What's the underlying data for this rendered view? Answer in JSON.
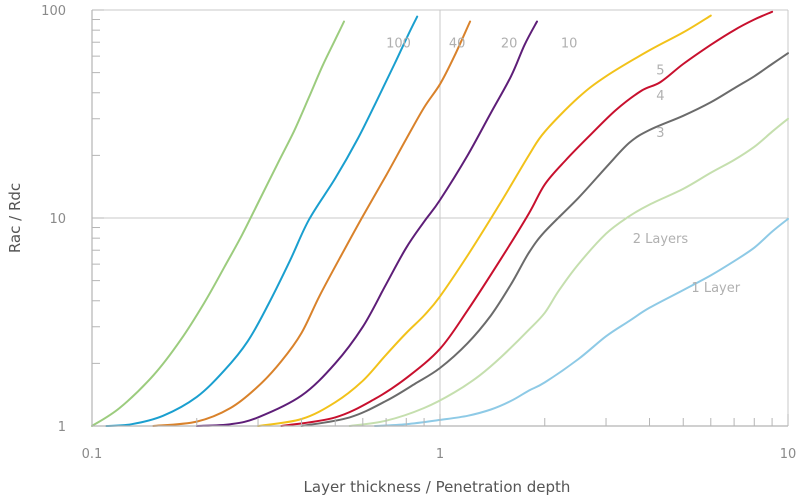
{
  "chart_data": {
    "type": "line",
    "xlabel": "Layer thickness / Penetration depth",
    "ylabel": "Rac / Rdc",
    "x_scale": "log",
    "y_scale": "log",
    "xlim": [
      0.1,
      10
    ],
    "ylim": [
      1,
      100
    ],
    "x_ticks": [
      {
        "value": 0.1,
        "label": "0.1"
      },
      {
        "value": 1,
        "label": "1"
      },
      {
        "value": 10,
        "label": "10"
      }
    ],
    "y_ticks": [
      {
        "value": 1,
        "label": "1"
      },
      {
        "value": 10,
        "label": "10"
      },
      {
        "value": 100,
        "label": "100"
      }
    ],
    "grid": "major gridlines at 1 and 10",
    "series": [
      {
        "name": "100",
        "color": "#9ccc7e",
        "points": [
          [
            0.1,
            1.0
          ],
          [
            0.12,
            1.22
          ],
          [
            0.15,
            1.75
          ],
          [
            0.18,
            2.6
          ],
          [
            0.21,
            3.9
          ],
          [
            0.24,
            5.8
          ],
          [
            0.27,
            8.3
          ],
          [
            0.3,
            11.8
          ],
          [
            0.34,
            18
          ],
          [
            0.38,
            26
          ],
          [
            0.42,
            38
          ],
          [
            0.46,
            54
          ],
          [
            0.5,
            72
          ],
          [
            0.53,
            88
          ]
        ]
      },
      {
        "name": "40",
        "color": "#1a9fcf",
        "points": [
          [
            0.11,
            1.0
          ],
          [
            0.13,
            1.02
          ],
          [
            0.16,
            1.12
          ],
          [
            0.2,
            1.38
          ],
          [
            0.24,
            1.85
          ],
          [
            0.28,
            2.55
          ],
          [
            0.32,
            3.8
          ],
          [
            0.37,
            6.2
          ],
          [
            0.42,
            9.8
          ],
          [
            0.5,
            15.5
          ],
          [
            0.58,
            24
          ],
          [
            0.66,
            37
          ],
          [
            0.74,
            55
          ],
          [
            0.81,
            76
          ],
          [
            0.86,
            93
          ]
        ]
      },
      {
        "name": "20",
        "color": "#d9822b",
        "points": [
          [
            0.15,
            1.0
          ],
          [
            0.2,
            1.05
          ],
          [
            0.25,
            1.22
          ],
          [
            0.3,
            1.55
          ],
          [
            0.35,
            2.05
          ],
          [
            0.4,
            2.8
          ],
          [
            0.45,
            4.2
          ],
          [
            0.52,
            6.6
          ],
          [
            0.6,
            10.2
          ],
          [
            0.7,
            16
          ],
          [
            0.8,
            24
          ],
          [
            0.9,
            34
          ],
          [
            1.0,
            44
          ],
          [
            1.1,
            60
          ],
          [
            1.22,
            88
          ]
        ]
      },
      {
        "name": "10",
        "color": "#5e1e78",
        "points": [
          [
            0.2,
            1.0
          ],
          [
            0.25,
            1.02
          ],
          [
            0.3,
            1.1
          ],
          [
            0.4,
            1.4
          ],
          [
            0.5,
            2.0
          ],
          [
            0.6,
            3.0
          ],
          [
            0.7,
            4.8
          ],
          [
            0.8,
            7.2
          ],
          [
            0.9,
            9.6
          ],
          [
            1.0,
            12.2
          ],
          [
            1.2,
            20
          ],
          [
            1.4,
            32
          ],
          [
            1.6,
            48
          ],
          [
            1.75,
            68
          ],
          [
            1.9,
            88
          ]
        ]
      },
      {
        "name": "5",
        "color": "#f2c21a",
        "points": [
          [
            0.3,
            1.0
          ],
          [
            0.4,
            1.08
          ],
          [
            0.5,
            1.3
          ],
          [
            0.6,
            1.65
          ],
          [
            0.7,
            2.2
          ],
          [
            0.8,
            2.8
          ],
          [
            0.9,
            3.4
          ],
          [
            1.0,
            4.2
          ],
          [
            1.2,
            6.6
          ],
          [
            1.5,
            12
          ],
          [
            1.8,
            20
          ],
          [
            2.0,
            26
          ],
          [
            2.5,
            38
          ],
          [
            3.0,
            48
          ],
          [
            4.0,
            64
          ],
          [
            5.0,
            78
          ],
          [
            6.0,
            94
          ]
        ]
      },
      {
        "name": "4",
        "color": "#c8102e",
        "points": [
          [
            0.35,
            1.0
          ],
          [
            0.5,
            1.1
          ],
          [
            0.65,
            1.35
          ],
          [
            0.8,
            1.7
          ],
          [
            1.0,
            2.35
          ],
          [
            1.2,
            3.6
          ],
          [
            1.5,
            6.4
          ],
          [
            1.8,
            10.5
          ],
          [
            2.0,
            14.5
          ],
          [
            2.3,
            19
          ],
          [
            2.7,
            25
          ],
          [
            3.2,
            33
          ],
          [
            3.8,
            41
          ],
          [
            4.3,
            45
          ],
          [
            5,
            55
          ],
          [
            6,
            68
          ],
          [
            7,
            80
          ],
          [
            8,
            90
          ],
          [
            9,
            98
          ]
        ]
      },
      {
        "name": "3",
        "color": "#6b6b6b",
        "points": [
          [
            0.4,
            1.0
          ],
          [
            0.55,
            1.1
          ],
          [
            0.7,
            1.32
          ],
          [
            0.85,
            1.6
          ],
          [
            1.0,
            1.9
          ],
          [
            1.2,
            2.5
          ],
          [
            1.4,
            3.4
          ],
          [
            1.6,
            4.8
          ],
          [
            1.8,
            6.8
          ],
          [
            2.0,
            8.6
          ],
          [
            2.5,
            12.5
          ],
          [
            3.0,
            17.5
          ],
          [
            3.5,
            23
          ],
          [
            4.0,
            26.5
          ],
          [
            5,
            31
          ],
          [
            6,
            36
          ],
          [
            7,
            42
          ],
          [
            8,
            48
          ],
          [
            9,
            55
          ],
          [
            10,
            62
          ]
        ]
      },
      {
        "name": "2 Layers",
        "color": "#c5dfae",
        "points": [
          [
            0.55,
            1.0
          ],
          [
            0.7,
            1.06
          ],
          [
            0.9,
            1.22
          ],
          [
            1.1,
            1.45
          ],
          [
            1.3,
            1.75
          ],
          [
            1.5,
            2.15
          ],
          [
            1.8,
            2.9
          ],
          [
            2.0,
            3.5
          ],
          [
            2.2,
            4.5
          ],
          [
            2.5,
            6.0
          ],
          [
            3.0,
            8.4
          ],
          [
            3.5,
            10.2
          ],
          [
            4.0,
            11.6
          ],
          [
            5,
            13.8
          ],
          [
            6,
            16.5
          ],
          [
            7,
            19
          ],
          [
            8,
            22
          ],
          [
            9,
            26
          ],
          [
            10,
            30
          ]
        ]
      },
      {
        "name": "1 Layer",
        "color": "#8ecae6",
        "points": [
          [
            0.65,
            1.0
          ],
          [
            0.8,
            1.02
          ],
          [
            1.0,
            1.07
          ],
          [
            1.2,
            1.12
          ],
          [
            1.4,
            1.2
          ],
          [
            1.6,
            1.32
          ],
          [
            1.8,
            1.48
          ],
          [
            2.0,
            1.62
          ],
          [
            2.5,
            2.1
          ],
          [
            3.0,
            2.7
          ],
          [
            3.5,
            3.2
          ],
          [
            4.0,
            3.7
          ],
          [
            5,
            4.5
          ],
          [
            6,
            5.3
          ],
          [
            7,
            6.2
          ],
          [
            8,
            7.2
          ],
          [
            9,
            8.6
          ],
          [
            10,
            9.9
          ]
        ]
      }
    ],
    "series_label_positions": [
      {
        "name": "100",
        "x": 0.76,
        "y": 66
      },
      {
        "name": "40",
        "x": 1.12,
        "y": 66
      },
      {
        "name": "20",
        "x": 1.58,
        "y": 66
      },
      {
        "name": "10",
        "x": 2.35,
        "y": 66
      },
      {
        "name": "5",
        "x": 4.3,
        "y": 49
      },
      {
        "name": "4",
        "x": 4.3,
        "y": 37
      },
      {
        "name": "3",
        "x": 4.3,
        "y": 24.5
      },
      {
        "name": "2 Layers",
        "x": 4.3,
        "y": 7.6
      },
      {
        "name": "1 Layer",
        "x": 6.2,
        "y": 4.4
      }
    ]
  }
}
